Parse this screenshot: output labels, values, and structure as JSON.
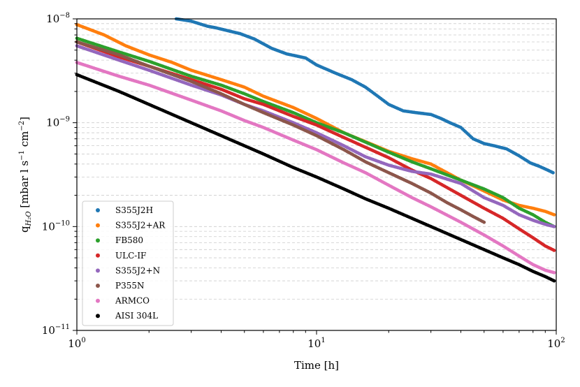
{
  "chart_data": {
    "type": "scatter",
    "title": "",
    "xlabel": "Time [h]",
    "ylabel_parts": {
      "q": "q",
      "sub": "H₂O",
      "unit": " [mbar l s",
      "exp1": "−1",
      "mid": " cm",
      "exp2": "−2",
      "end": "]"
    },
    "xscale": "log",
    "yscale": "log",
    "xlim": [
      1,
      100
    ],
    "ylim": [
      1e-11,
      1e-08
    ],
    "xticks": [
      {
        "value": 1,
        "base": "10",
        "exp": "0"
      },
      {
        "value": 10,
        "base": "10",
        "exp": "1"
      },
      {
        "value": 100,
        "base": "10",
        "exp": "2"
      }
    ],
    "yticks": [
      {
        "value": 1e-11,
        "base": "10",
        "exp": "−11"
      },
      {
        "value": 1e-10,
        "base": "10",
        "exp": "−10"
      },
      {
        "value": 1e-09,
        "base": "10",
        "exp": "−9"
      },
      {
        "value": 1e-08,
        "base": "10",
        "exp": "−8"
      }
    ],
    "grid": "y-minor dashed",
    "legend_position": "lower-left",
    "series": [
      {
        "name": "S355J2H",
        "color": "#1f77b4",
        "points": [
          [
            2.6,
            1e-08
          ],
          [
            3.0,
            9.5e-09
          ],
          [
            3.5,
            8.5e-09
          ],
          [
            3.8,
            8.2e-09
          ],
          [
            4.8,
            7.2e-09
          ],
          [
            5.5,
            6.4e-09
          ],
          [
            6.5,
            5.2e-09
          ],
          [
            7.5,
            4.6e-09
          ],
          [
            9,
            4.2e-09
          ],
          [
            10,
            3.6e-09
          ],
          [
            12,
            3e-09
          ],
          [
            14,
            2.6e-09
          ],
          [
            16,
            2.2e-09
          ],
          [
            18,
            1.8e-09
          ],
          [
            20,
            1.5e-09
          ],
          [
            23,
            1.3e-09
          ],
          [
            26,
            1.25e-09
          ],
          [
            30,
            1.2e-09
          ],
          [
            33,
            1.1e-09
          ],
          [
            36,
            1e-09
          ],
          [
            40,
            9e-10
          ],
          [
            45,
            7e-10
          ],
          [
            50,
            6.3e-10
          ],
          [
            55,
            6e-10
          ],
          [
            62,
            5.6e-10
          ],
          [
            70,
            4.8e-10
          ],
          [
            78,
            4.1e-10
          ],
          [
            85,
            3.8e-10
          ],
          [
            92,
            3.5e-10
          ],
          [
            97,
            3.3e-10
          ]
        ]
      },
      {
        "name": "S355J2+AR",
        "color": "#ff7f0e",
        "points": [
          [
            1.0,
            8.8e-09
          ],
          [
            1.3,
            7e-09
          ],
          [
            1.6,
            5.5e-09
          ],
          [
            2,
            4.5e-09
          ],
          [
            2.5,
            3.8e-09
          ],
          [
            3,
            3.2e-09
          ],
          [
            4,
            2.6e-09
          ],
          [
            5,
            2.2e-09
          ],
          [
            6,
            1.8e-09
          ],
          [
            8,
            1.4e-09
          ],
          [
            10,
            1.1e-09
          ],
          [
            13,
            8e-10
          ],
          [
            17,
            6.2e-10
          ],
          [
            20,
            5.3e-10
          ],
          [
            25,
            4.5e-10
          ],
          [
            30,
            4e-10
          ],
          [
            40,
            2.8e-10
          ],
          [
            50,
            2.2e-10
          ],
          [
            60,
            1.8e-10
          ],
          [
            70,
            1.6e-10
          ],
          [
            80,
            1.5e-10
          ],
          [
            90,
            1.4e-10
          ],
          [
            98,
            1.3e-10
          ]
        ]
      },
      {
        "name": "FB580",
        "color": "#2ca02c",
        "points": [
          [
            1.0,
            6.5e-09
          ],
          [
            1.5,
            4.8e-09
          ],
          [
            2,
            3.9e-09
          ],
          [
            3,
            2.8e-09
          ],
          [
            4,
            2.3e-09
          ],
          [
            5,
            1.9e-09
          ],
          [
            6,
            1.6e-09
          ],
          [
            8,
            1.25e-09
          ],
          [
            10,
            1e-09
          ],
          [
            13,
            8e-10
          ],
          [
            16,
            6.5e-10
          ],
          [
            20,
            5.2e-10
          ],
          [
            25,
            4.2e-10
          ],
          [
            30,
            3.6e-10
          ],
          [
            40,
            2.8e-10
          ],
          [
            50,
            2.3e-10
          ],
          [
            60,
            1.9e-10
          ],
          [
            70,
            1.5e-10
          ],
          [
            80,
            1.3e-10
          ],
          [
            90,
            1.1e-10
          ],
          [
            98,
            1e-10
          ]
        ]
      },
      {
        "name": "ULC-IF",
        "color": "#d62728",
        "points": [
          [
            1.0,
            6e-09
          ],
          [
            1.5,
            4.3e-09
          ],
          [
            2,
            3.5e-09
          ],
          [
            3,
            2.6e-09
          ],
          [
            4,
            2.1e-09
          ],
          [
            5,
            1.7e-09
          ],
          [
            6,
            1.5e-09
          ],
          [
            8,
            1.15e-09
          ],
          [
            10,
            9.5e-10
          ],
          [
            13,
            7.2e-10
          ],
          [
            16,
            5.8e-10
          ],
          [
            20,
            4.6e-10
          ],
          [
            25,
            3.5e-10
          ],
          [
            30,
            2.9e-10
          ],
          [
            40,
            2e-10
          ],
          [
            50,
            1.5e-10
          ],
          [
            60,
            1.2e-10
          ],
          [
            70,
            9.5e-11
          ],
          [
            80,
            7.8e-11
          ],
          [
            90,
            6.5e-11
          ],
          [
            98,
            5.9e-11
          ]
        ]
      },
      {
        "name": "S355J2+N",
        "color": "#9467bd",
        "points": [
          [
            1.0,
            5.5e-09
          ],
          [
            1.5,
            4e-09
          ],
          [
            2,
            3.2e-09
          ],
          [
            3,
            2.3e-09
          ],
          [
            4,
            1.85e-09
          ],
          [
            5,
            1.5e-09
          ],
          [
            6,
            1.3e-09
          ],
          [
            8,
            1e-09
          ],
          [
            10,
            8e-10
          ],
          [
            13,
            6e-10
          ],
          [
            16,
            4.7e-10
          ],
          [
            20,
            3.9e-10
          ],
          [
            25,
            3.4e-10
          ],
          [
            30,
            3.2e-10
          ],
          [
            40,
            2.6e-10
          ],
          [
            50,
            1.9e-10
          ],
          [
            60,
            1.6e-10
          ],
          [
            70,
            1.3e-10
          ],
          [
            80,
            1.15e-10
          ],
          [
            90,
            1.05e-10
          ],
          [
            98,
            1e-10
          ]
        ]
      },
      {
        "name": "P355N",
        "color": "#8c564b",
        "points": [
          [
            1.0,
            6e-09
          ],
          [
            1.5,
            4.5e-09
          ],
          [
            2,
            3.5e-09
          ],
          [
            3,
            2.5e-09
          ],
          [
            4,
            1.9e-09
          ],
          [
            5,
            1.5e-09
          ],
          [
            6,
            1.25e-09
          ],
          [
            8,
            9.5e-10
          ],
          [
            10,
            7.5e-10
          ],
          [
            13,
            5.5e-10
          ],
          [
            16,
            4.2e-10
          ],
          [
            20,
            3.3e-10
          ],
          [
            25,
            2.6e-10
          ],
          [
            30,
            2.1e-10
          ],
          [
            35,
            1.7e-10
          ],
          [
            40,
            1.45e-10
          ],
          [
            45,
            1.25e-10
          ],
          [
            50,
            1.1e-10
          ]
        ]
      },
      {
        "name": "ARMCO",
        "color": "#e377c2",
        "points": [
          [
            1.0,
            3.8e-09
          ],
          [
            1.5,
            2.8e-09
          ],
          [
            2,
            2.3e-09
          ],
          [
            3,
            1.65e-09
          ],
          [
            4,
            1.3e-09
          ],
          [
            5,
            1.05e-09
          ],
          [
            6,
            9e-10
          ],
          [
            8,
            6.8e-10
          ],
          [
            10,
            5.5e-10
          ],
          [
            13,
            4.1e-10
          ],
          [
            16,
            3.3e-10
          ],
          [
            20,
            2.5e-10
          ],
          [
            25,
            1.9e-10
          ],
          [
            30,
            1.55e-10
          ],
          [
            40,
            1.1e-10
          ],
          [
            50,
            8.3e-11
          ],
          [
            60,
            6.5e-11
          ],
          [
            70,
            5.2e-11
          ],
          [
            80,
            4.3e-11
          ],
          [
            90,
            3.8e-11
          ],
          [
            98,
            3.6e-11
          ]
        ]
      },
      {
        "name": "AISI 304L",
        "color": "#000000",
        "points": [
          [
            1.0,
            2.9e-09
          ],
          [
            1.5,
            2e-09
          ],
          [
            2,
            1.5e-09
          ],
          [
            3,
            1e-09
          ],
          [
            4,
            7.5e-10
          ],
          [
            5,
            6e-10
          ],
          [
            6,
            5e-10
          ],
          [
            8,
            3.7e-10
          ],
          [
            10,
            3e-10
          ],
          [
            13,
            2.3e-10
          ],
          [
            16,
            1.85e-10
          ],
          [
            20,
            1.5e-10
          ],
          [
            25,
            1.2e-10
          ],
          [
            30,
            1e-10
          ],
          [
            40,
            7.5e-11
          ],
          [
            50,
            6e-11
          ],
          [
            60,
            5e-11
          ],
          [
            70,
            4.3e-11
          ],
          [
            80,
            3.7e-11
          ],
          [
            90,
            3.3e-11
          ],
          [
            98,
            3e-11
          ]
        ]
      }
    ]
  }
}
